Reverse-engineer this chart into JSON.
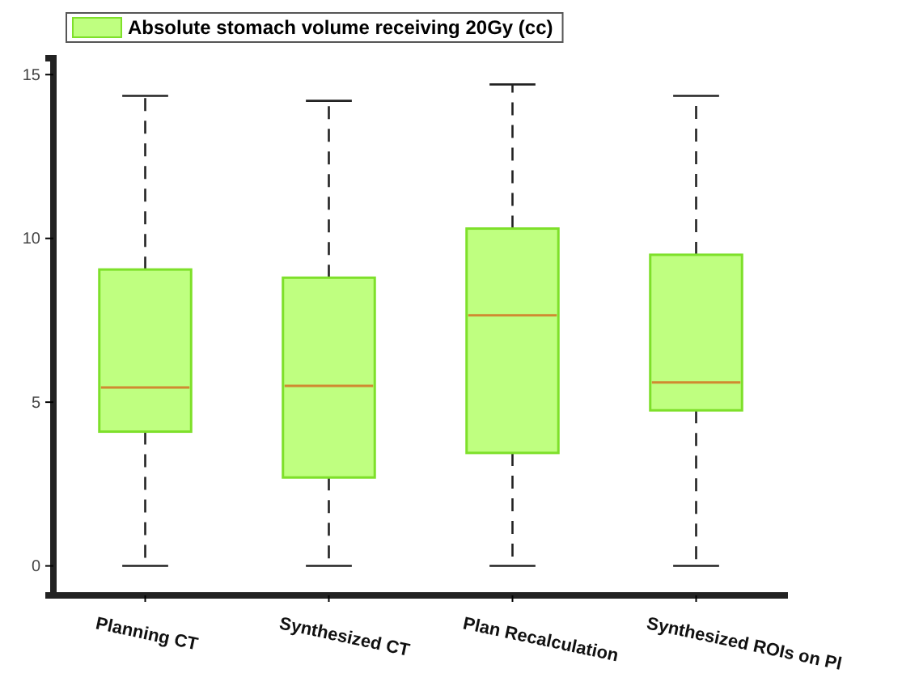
{
  "chart_data": {
    "type": "box",
    "categories": [
      "Planning CT",
      "Synthesized CT",
      "Plan Recalculation",
      "Synthesized ROIs on Pl"
    ],
    "series": [
      {
        "name": "Absolute stomach volume receiving 20Gy (cc)",
        "color": "#bfff80",
        "boxes": [
          {
            "low": 0,
            "q1": 4.1,
            "median": 5.45,
            "q3": 9.05,
            "high": 14.35
          },
          {
            "low": 0,
            "q1": 2.7,
            "median": 5.5,
            "q3": 8.8,
            "high": 14.2
          },
          {
            "low": 0,
            "q1": 3.45,
            "median": 7.65,
            "q3": 10.3,
            "high": 14.7
          },
          {
            "low": 0,
            "q1": 4.75,
            "median": 5.6,
            "q3": 9.5,
            "high": 14.35
          }
        ]
      }
    ],
    "ylim": [
      -0.9,
      15.5
    ],
    "yticks": [
      0,
      5,
      10,
      15
    ],
    "legend": "top left",
    "grid": false,
    "line_style": "dashed"
  }
}
